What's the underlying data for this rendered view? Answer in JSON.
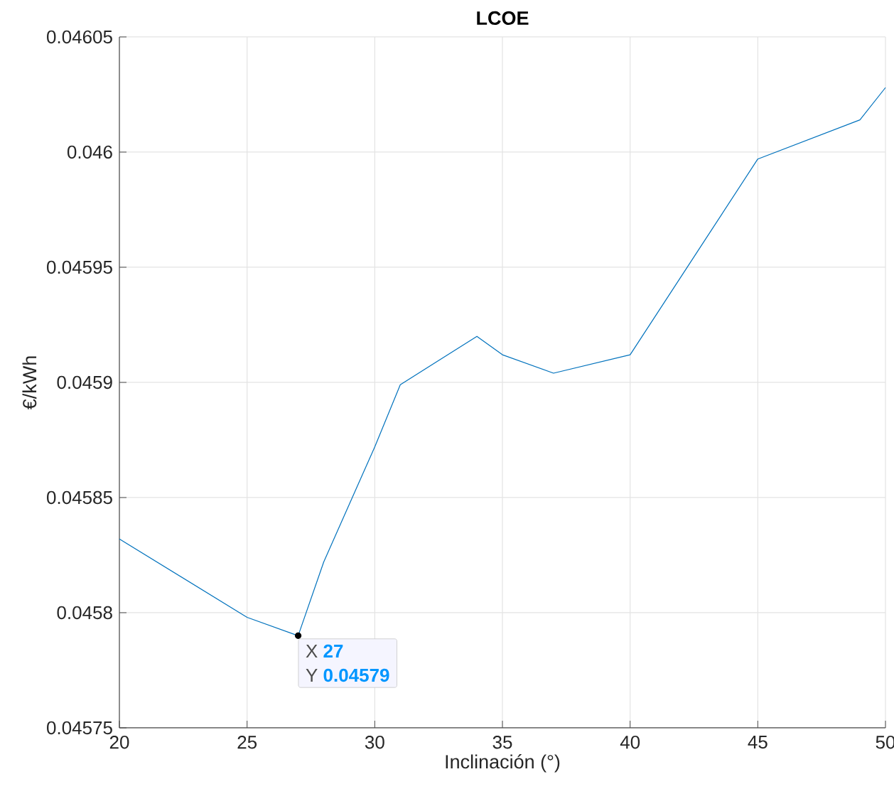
{
  "chart_data": {
    "type": "line",
    "title": "LCOE",
    "xlabel": "Inclinación (°)",
    "ylabel": "€/kWh",
    "x": [
      20,
      25,
      27,
      28,
      30,
      31,
      34,
      35,
      37,
      40,
      43,
      45,
      49,
      50
    ],
    "values": [
      0.045832,
      0.045798,
      0.04579,
      0.045822,
      0.045872,
      0.045899,
      0.04592,
      0.045912,
      0.045904,
      0.045912,
      0.045963,
      0.045997,
      0.046014,
      0.046028
    ],
    "color": "#0072bd",
    "xlim": [
      20,
      50
    ],
    "ylim": [
      0.04575,
      0.04605
    ],
    "xticks": [
      20,
      25,
      30,
      35,
      40,
      45,
      50
    ],
    "yticks": [
      0.04575,
      0.0458,
      0.04585,
      0.0459,
      0.04595,
      0.046,
      0.04605
    ],
    "grid": true,
    "annotations": [
      {
        "text": "X **27**",
        "x": 27,
        "y": 0.04579
      },
      {
        "text": "Y **0.04579**",
        "x": 27,
        "y": 0.04579
      }
    ]
  }
}
